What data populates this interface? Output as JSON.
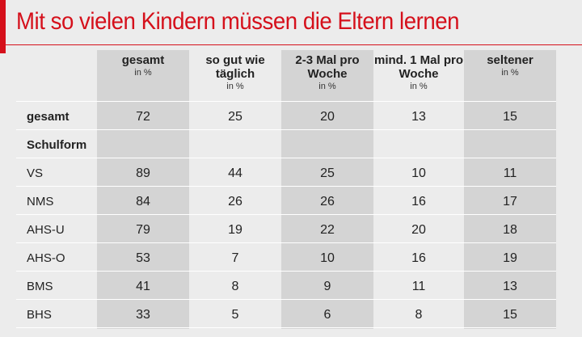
{
  "title": "Mit so vielen Kindern müssen die Eltern lernen",
  "colors": {
    "accent": "#d5101b",
    "shaded_column": "#d4d4d4",
    "background": "#ececec"
  },
  "columns": [
    {
      "label": "gesamt",
      "unit": "in %"
    },
    {
      "label": "so gut wie täglich",
      "unit": "in %"
    },
    {
      "label": "2-3 Mal pro Woche",
      "unit": "in %"
    },
    {
      "label": "mind. 1 Mal pro Woche",
      "unit": "in %"
    },
    {
      "label": "seltener",
      "unit": "in %"
    }
  ],
  "rows": [
    {
      "label": "gesamt",
      "values": [
        "72",
        "25",
        "20",
        "13",
        "15"
      ]
    },
    {
      "label": "Schulform",
      "values": [
        "",
        "",
        "",
        "",
        ""
      ]
    },
    {
      "label": "VS",
      "values": [
        "89",
        "44",
        "25",
        "10",
        "11"
      ]
    },
    {
      "label": "NMS",
      "values": [
        "84",
        "26",
        "26",
        "16",
        "17"
      ]
    },
    {
      "label": "AHS-U",
      "values": [
        "79",
        "19",
        "22",
        "20",
        "18"
      ]
    },
    {
      "label": "AHS-O",
      "values": [
        "53",
        "7",
        "10",
        "16",
        "19"
      ]
    },
    {
      "label": "BMS",
      "values": [
        "41",
        "8",
        "9",
        "11",
        "13"
      ]
    },
    {
      "label": "BHS",
      "values": [
        "33",
        "5",
        "6",
        "8",
        "15"
      ]
    }
  ]
}
